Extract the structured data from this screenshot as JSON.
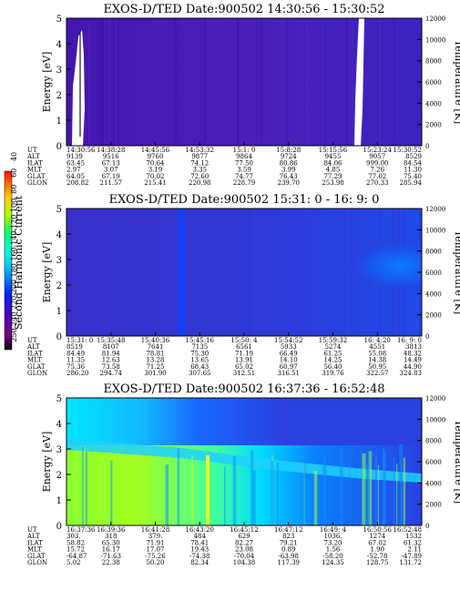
{
  "colorbar": {
    "label": "Second Harmonic Current",
    "ticks": [
      "40",
      "60",
      "80",
      "100",
      "120",
      "140",
      "160",
      "180",
      "200",
      "220",
      "240",
      "250"
    ],
    "colors": [
      "#000000",
      "#7b007b",
      "#5a00b0",
      "#2a00d6",
      "#0028ff",
      "#0070ff",
      "#00b8ff",
      "#00e8ff",
      "#00ffd0",
      "#00ff70",
      "#30ff20",
      "#a8ff00",
      "#f0ff00",
      "#ffd000",
      "#ff8000",
      "#ff2000"
    ]
  },
  "chart_data": [
    {
      "type": "heatmap",
      "title": "EXOS-D/TED   Date:900502   14:30:56 - 15:30:52",
      "ylabel": "Energy [eV]",
      "y2label": "Temperature [K]",
      "ylim": [
        0,
        5
      ],
      "yticks": [
        "0",
        "1",
        "2",
        "3",
        "4",
        "5"
      ],
      "y2ticks": [
        "0",
        "2000",
        "4000",
        "6000",
        "8000",
        "10000",
        "12000"
      ],
      "base_color": "#4a1fb8",
      "features": [
        {
          "kind": "white_band",
          "t0": 0.03,
          "t1": 0.06,
          "e0": 0,
          "e1": 4.7
        },
        {
          "kind": "white_band",
          "t0": 0.865,
          "t1": 0.89,
          "e0": 0,
          "e1": 5
        },
        {
          "kind": "dark_line",
          "t": 0.05,
          "e0": 0.3,
          "e1": 4.6
        }
      ],
      "table": {
        "row_labels": [
          "UT",
          "ALT",
          "ILAT",
          "MLT",
          "GLAT",
          "GLON"
        ],
        "columns": [
          [
            "14:30:56",
            "9139",
            "63.45",
            "2.97",
            "64.05",
            "208.82"
          ],
          [
            "14:38:28",
            "9516",
            "67.13",
            "3.07",
            "67.19",
            "211.57"
          ],
          [
            "14:45:56",
            "9760",
            "70.64",
            "3.19",
            "70.02",
            "215.41"
          ],
          [
            "14:53:32",
            "9877",
            "74.12",
            "3.35",
            "72.60",
            "220.98"
          ],
          [
            "15:1: 0",
            "9864",
            "77.50",
            "3.59",
            "74.77",
            "228.79"
          ],
          [
            "15:8:28",
            "9724",
            "80.86",
            "3.99",
            "76.43",
            "239.70"
          ],
          [
            "15:15:56",
            "9455",
            "84.06",
            "4.85",
            "77.29",
            "253.98"
          ],
          [
            "15:23:24",
            "9057",
            "999.00",
            "7.26",
            "77.02",
            "270.33"
          ],
          [
            "15:30:52",
            "8529",
            "84.54",
            "11.30",
            "75.40",
            "285.94"
          ]
        ]
      }
    },
    {
      "type": "heatmap",
      "title": "EXOS-D/TED   Date:900502   15:31: 0 - 16: 9: 0",
      "ylabel": "Energy [eV]",
      "y2label": "Temperature [K]",
      "ylim": [
        0,
        5
      ],
      "yticks": [
        "0",
        "1",
        "2",
        "3",
        "4",
        "5"
      ],
      "y2ticks": [
        "0",
        "2000",
        "4000",
        "6000",
        "8000",
        "10000",
        "12000"
      ],
      "base_color": "#2f35d8",
      "features": [
        {
          "kind": "blue_column",
          "t": 0.385,
          "width": 0.018
        },
        {
          "kind": "bright_blob",
          "t": 0.96,
          "e": 2.9
        }
      ],
      "table": {
        "row_labels": [
          "UT",
          "ALT",
          "ILAT",
          "MLT",
          "GLAT",
          "GLON"
        ],
        "columns": [
          [
            "15:31: 0",
            "8519",
            "84.49",
            "11.35",
            "75.36",
            "286.20"
          ],
          [
            "15:35:48",
            "8107",
            "81.94",
            "12.63",
            "73.58",
            "294.74"
          ],
          [
            "15:40:36",
            "7641",
            "78.81",
            "13.28",
            "71.25",
            "301.90"
          ],
          [
            "15:45:16",
            "7135",
            "75.30",
            "13.65",
            "68.43",
            "307.65"
          ],
          [
            "15:50: 4",
            "6561",
            "71.19",
            "13.91",
            "65.02",
            "312.51"
          ],
          [
            "15:54:52",
            "5933",
            "66.49",
            "14.10",
            "60.97",
            "316.51"
          ],
          [
            "15:59:32",
            "5274",
            "61.25",
            "14.25",
            "56.40",
            "319.76"
          ],
          [
            "16: 4:20",
            "4551",
            "55.08",
            "14.38",
            "50.95",
            "322.57"
          ],
          [
            "16: 9: 0",
            "3813",
            "48.32",
            "14.49",
            "44.90",
            "324.83"
          ]
        ]
      }
    },
    {
      "type": "heatmap",
      "title": "EXOS-D/TED   Date:900502   16:37:36 - 16:52:48",
      "ylabel": "Energy [eV]",
      "y2label": "Temperature [K]",
      "ylim": [
        0,
        5
      ],
      "yticks": [
        "0",
        "1",
        "2",
        "3",
        "4",
        "5"
      ],
      "y2ticks": [
        "0",
        "2000",
        "4000",
        "6000",
        "8000",
        "10000",
        "12000"
      ],
      "base_color": "#2a40e0",
      "features": [
        {
          "kind": "green_low_energy",
          "t0": 0,
          "t1": 0.55,
          "e0": 0,
          "e1": 3.1
        },
        {
          "kind": "cyan_top",
          "t0": 0,
          "t1": 0.55,
          "e0": 3.1,
          "e1": 5
        },
        {
          "kind": "cyan_diagonal_band",
          "note": "decreasing energy with time"
        },
        {
          "kind": "yellow_column",
          "t": 0.4
        }
      ],
      "table": {
        "row_labels": [
          "UT",
          "ALT",
          "ILAT",
          "MLT",
          "GLAT",
          "GLON"
        ],
        "columns": [
          [
            "16:37:36",
            "303.",
            "58.82",
            "15.72",
            "-64.87",
            "5.02"
          ],
          [
            "16:39:36",
            "318",
            "65.30",
            "16.17",
            "-71.63",
            "22.38"
          ],
          [
            "16:41:28",
            "379.",
            "71.91",
            "17.07",
            "-75.26",
            "50.20"
          ],
          [
            "16:43:20",
            "484",
            "78.41",
            "19.43",
            "-74.38",
            "82.34"
          ],
          [
            "16:45:12",
            "629",
            "82.27",
            "23.08",
            "-70.04",
            "104.38"
          ],
          [
            "16:47:12",
            "823",
            "79.21",
            "0.89",
            "-63.98",
            "117.39"
          ],
          [
            "16:49: 4",
            "1036.",
            "73.20",
            "1.56",
            "-58.20",
            "124.35"
          ],
          [
            "16:50:56",
            "1274",
            "67.02",
            "1.90",
            "-52.78",
            "128.75"
          ],
          [
            "16:52:48",
            "1532",
            "61.32",
            "2.11",
            "-47.89",
            "131.72"
          ]
        ]
      }
    }
  ]
}
